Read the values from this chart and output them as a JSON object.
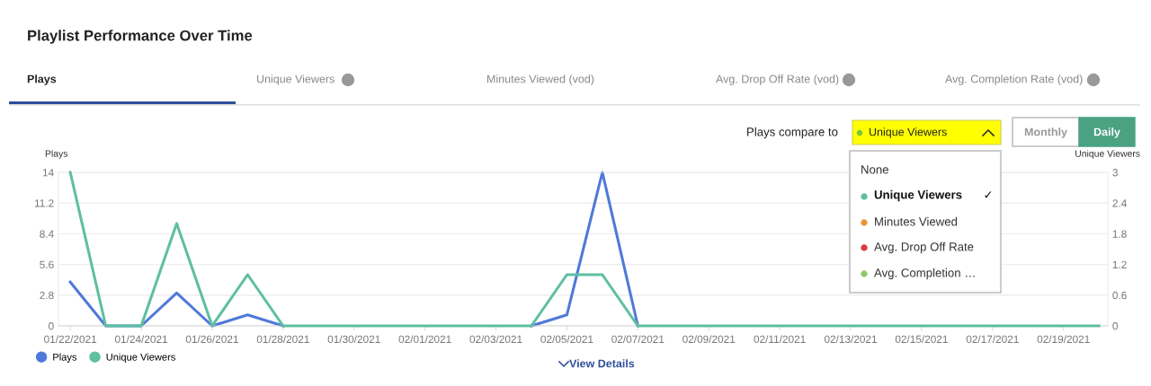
{
  "chart_data": {
    "type": "line",
    "title": "Playlist Performance Over Time",
    "ylabel": "Plays",
    "y2label": "Unique Viewers",
    "x": [
      "2021-01-22",
      "2021-01-23",
      "2021-01-24",
      "2021-01-25",
      "2021-01-26",
      "2021-01-27",
      "2021-01-28",
      "2021-01-29",
      "2021-01-30",
      "2021-01-31",
      "2021-02-01",
      "2021-02-02",
      "2021-02-03",
      "2021-02-04",
      "2021-02-05",
      "2021-02-06",
      "2021-02-07",
      "2021-02-08",
      "2021-02-09",
      "2021-02-10",
      "2021-02-11",
      "2021-02-12",
      "2021-02-13",
      "2021-02-14",
      "2021-02-15",
      "2021-02-16",
      "2021-02-17",
      "2021-02-18",
      "2021-02-19",
      "2021-02-20"
    ],
    "series": [
      {
        "name": "Plays",
        "color": "#4f79d9",
        "values": [
          4,
          0,
          0,
          3,
          0,
          1,
          0,
          null,
          null,
          null,
          null,
          null,
          null,
          0,
          1,
          14,
          0,
          null,
          null,
          null,
          null,
          null,
          null,
          null,
          null,
          null,
          null,
          null,
          null,
          null
        ]
      },
      {
        "name": "Unique Viewers",
        "color": "#5fbfa0",
        "axis": "y2",
        "values": [
          3,
          0,
          0,
          2,
          0,
          1,
          0,
          0,
          0,
          0,
          0,
          0,
          0,
          0,
          1,
          1,
          0,
          0,
          0,
          0,
          0,
          0,
          0,
          0,
          0,
          0,
          0,
          0,
          0,
          0
        ]
      }
    ],
    "xlim": [
      "2021-01-21T16:00",
      "2021-02-20T06:00"
    ],
    "xticks": [
      {
        "value": "2021-01-22",
        "label": "01/22/2021"
      },
      {
        "value": "2021-01-24",
        "label": "01/24/2021"
      },
      {
        "value": "2021-01-26",
        "label": "01/26/2021"
      },
      {
        "value": "2021-01-28",
        "label": "01/28/2021"
      },
      {
        "value": "2021-01-30",
        "label": "01/30/2021"
      },
      {
        "value": "2021-02-01",
        "label": "02/01/2021"
      },
      {
        "value": "2021-02-03",
        "label": "02/03/2021"
      },
      {
        "value": "2021-02-05",
        "label": "02/05/2021"
      },
      {
        "value": "2021-02-07",
        "label": "02/07/2021"
      },
      {
        "value": "2021-02-09",
        "label": "02/09/2021"
      },
      {
        "value": "2021-02-11",
        "label": "02/11/2021"
      },
      {
        "value": "2021-02-13",
        "label": "02/13/2021"
      },
      {
        "value": "2021-02-15",
        "label": "02/15/2021"
      },
      {
        "value": "2021-02-17",
        "label": "02/17/2021"
      },
      {
        "value": "2021-02-19",
        "label": "02/19/2021"
      }
    ],
    "ylim": [
      0,
      14
    ],
    "yticks": [
      0,
      2.8,
      5.6,
      8.4,
      11.2,
      14
    ],
    "y2lim": [
      0,
      3
    ],
    "y2ticks": [
      0,
      0.6,
      1.2,
      1.8,
      2.4,
      3
    ],
    "grid": "y",
    "legend": "bottom left",
    "marker": "none",
    "line_style": "solid",
    "annotations": [
      "Plays",
      "Unique Viewers",
      "Minutes Viewed (vod)",
      "Avg. Drop Off Rate (vod)",
      "Avg. Completion Rate (vod)",
      "Plays compare to",
      "Unique Viewers",
      "Monthly",
      "Daily",
      "None",
      "Unique Viewers",
      "Minutes Viewed",
      "Avg. Drop Off Rate",
      "Avg. Completion …",
      "✓",
      "View Details"
    ]
  }
}
